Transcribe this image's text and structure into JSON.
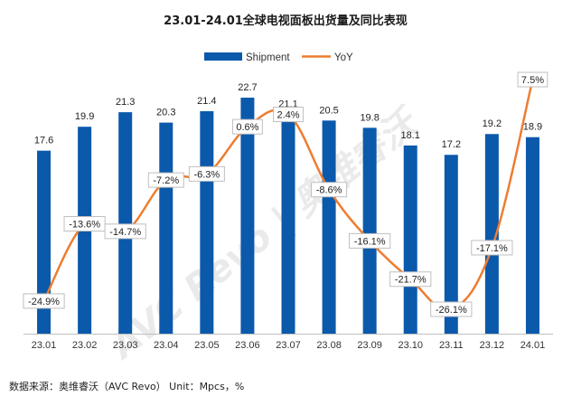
{
  "title": "23.01-24.01全球电视面板出货量及同比表现",
  "source": "数据来源：奥维睿沃（AVC Revo） Unit：Mpcs，%",
  "watermark": "AVC Revo | 奥维睿沃",
  "colors": {
    "bar": "#0B59AB",
    "line": "#ED7D31",
    "axis": "#bfbfbf"
  },
  "chart_data": {
    "type": "bar",
    "categories": [
      "23.01",
      "23.02",
      "23.03",
      "23.04",
      "23.05",
      "23.06",
      "23.07",
      "23.08",
      "23.09",
      "23.10",
      "23.11",
      "23.12",
      "24.01"
    ],
    "series": [
      {
        "name": "Shipment",
        "type": "bar",
        "values": [
          17.6,
          19.9,
          21.3,
          20.3,
          21.4,
          22.7,
          21.1,
          20.5,
          19.8,
          18.1,
          17.2,
          19.2,
          18.9
        ],
        "labels": [
          "17.6",
          "19.9",
          "21.3",
          "20.3",
          "21.4",
          "22.7",
          "21.1",
          "20.5",
          "19.8",
          "18.1",
          "17.2",
          "19.2",
          "18.9"
        ]
      },
      {
        "name": "YoY",
        "type": "line",
        "values": [
          -24.9,
          -13.6,
          -14.7,
          -7.2,
          -6.3,
          0.6,
          2.4,
          -8.6,
          -16.1,
          -21.7,
          -26.1,
          -17.1,
          7.5
        ],
        "labels": [
          "-24.9%",
          "-13.6%",
          "-14.7%",
          "-7.2%",
          "-6.3%",
          "0.6%",
          "2.4%",
          "-8.6%",
          "-16.1%",
          "-21.7%",
          "-26.1%",
          "-17.1%",
          "7.5%"
        ]
      }
    ],
    "legend_position": "top",
    "grid": false
  }
}
